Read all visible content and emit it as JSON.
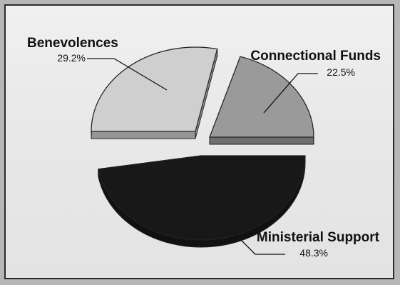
{
  "chart_data": {
    "type": "pie",
    "title": "",
    "slices": [
      {
        "name": "Benevolences",
        "percent_label": "29.2%",
        "value": 29.2
      },
      {
        "name": "Connectional Funds",
        "percent_label": "22.5%",
        "value": 22.5
      },
      {
        "name": "Ministerial Support",
        "percent_label": "48.3%",
        "value": 48.3
      }
    ],
    "colors": {
      "Benevolences": "#cfcfcf",
      "Connectional Funds": "#9a9a9a",
      "Ministerial Support": "#181818",
      "background": "#ececec",
      "frame": "#2a2a2a"
    },
    "style": "exploded-3d"
  }
}
